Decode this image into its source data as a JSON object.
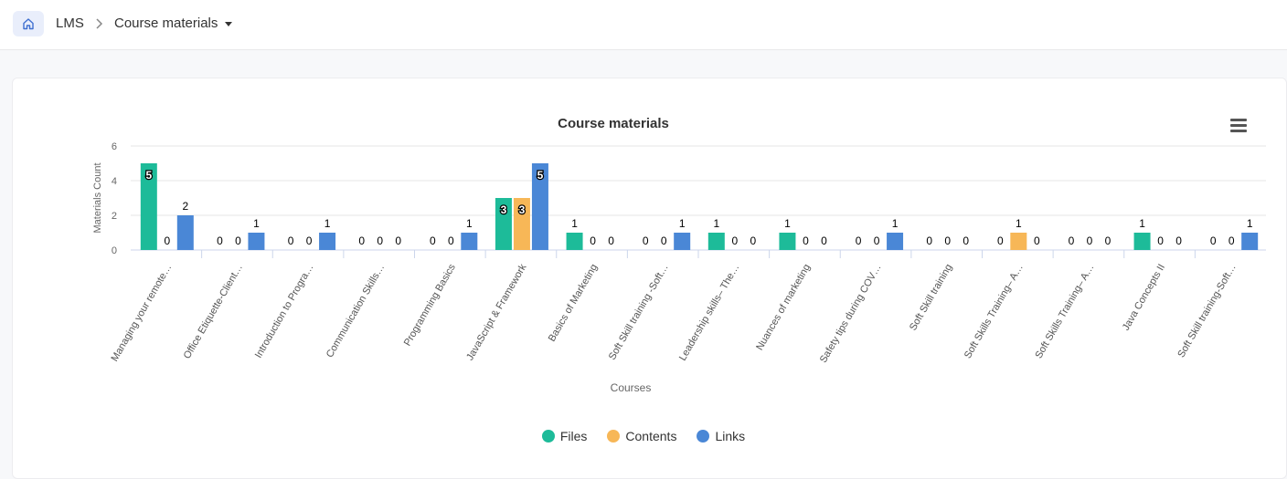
{
  "breadcrumb": {
    "home_icon": "home-icon",
    "items": [
      "LMS"
    ],
    "current": "Course materials"
  },
  "colors": {
    "files": "#1dbb99",
    "contents": "#f7b757",
    "links": "#4a87d6"
  },
  "chart_data": {
    "type": "bar",
    "title": "Course materials",
    "xlabel": "Courses",
    "ylabel": "Materials Count",
    "ylim": [
      0,
      6
    ],
    "yticks": [
      0,
      2,
      4,
      6
    ],
    "categories": [
      "Managing your remote…",
      "Office Etiquette-Client…",
      "Introduction to Progra…",
      "Communication Skills…",
      "Programming Basics",
      "JavaScript & Framework",
      "Basics of Marketing",
      "Soft Skill training -Soft…",
      "Leadership skills– The…",
      "Nuances of marketing",
      "Safety tips during COV…",
      "Soft Skill training",
      "Soft Skills Training– A…",
      "Soft Skills Training– A…",
      "Java Concepts II",
      "Soft Skill training-Soft…"
    ],
    "series": [
      {
        "name": "Files",
        "values": [
          5,
          0,
          0,
          0,
          0,
          3,
          1,
          0,
          1,
          1,
          0,
          0,
          0,
          0,
          1,
          0
        ]
      },
      {
        "name": "Contents",
        "values": [
          0,
          0,
          0,
          0,
          0,
          3,
          0,
          0,
          0,
          0,
          0,
          0,
          1,
          0,
          0,
          0
        ]
      },
      {
        "name": "Links",
        "values": [
          2,
          1,
          1,
          0,
          1,
          5,
          0,
          1,
          0,
          0,
          1,
          0,
          0,
          0,
          0,
          1
        ]
      }
    ],
    "grid": true,
    "data_labels": true,
    "legend": "bottom-center"
  }
}
